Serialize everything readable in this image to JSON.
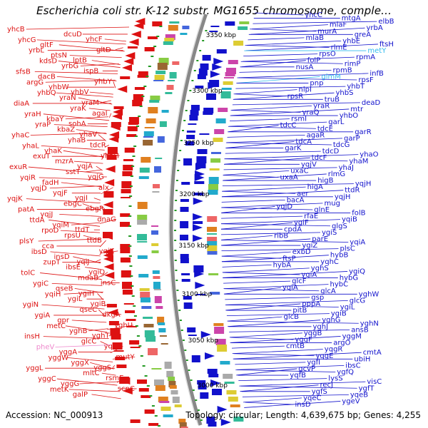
{
  "title": "Escherichia coli str. K-12 substr. MG1655 chromosome, comple...",
  "footer": {
    "accession": "Accession: NC_000913",
    "summary": "Topology: circular; Length: 4,639,675 bp; Genes: 4,255"
  },
  "colors": {
    "forward": "#dd1111",
    "reverse": "#1111cc",
    "pseudo": "#ee88cc",
    "rna": "#33bbee",
    "backbone": "#888888",
    "tick": "#229922"
  },
  "ruler_labels": [
    "3350 kbp",
    "3300 kbp",
    "3250 kbp",
    "3200 kbp",
    "3150 kbp",
    "3100 kbp",
    "3050 kbp",
    "3000 kbp"
  ],
  "left_genes": [
    "yhcB",
    "dcuD",
    "yhcF",
    "yhcG",
    "gltF",
    "gltD",
    "yrbL",
    "ptsN",
    "lptB",
    "kdsD",
    "yrbG",
    "ispB",
    "sfsB",
    "dacB",
    "yhbY",
    "argG",
    "yhbW",
    "yhbV",
    "yhbQ",
    "yraN",
    "yraM",
    "diaA",
    "yraK",
    "agaI",
    "yraH",
    "kbaY",
    "sohA",
    "yraP",
    "kbaZ",
    "yhaV",
    "yhaC",
    "yhaB",
    "tdcR",
    "yhaL",
    "yhaK",
    "yhaH",
    "exuT",
    "mzrA",
    "yqjA",
    "exuR",
    "sstT",
    "yqjG",
    "yqiR",
    "fadH",
    "alx",
    "yqjD",
    "yqjF",
    "yqjI",
    "yqjK",
    "ebgC",
    "ebgR",
    "patA",
    "yqjJ",
    "dnaG",
    "ttdA",
    "yqiM",
    "ttdT",
    "rpoD",
    "rpsU",
    "ttdB",
    "plsY",
    "cca",
    "yqiK",
    "ibsD",
    "insD",
    "yqiJ",
    "zupT",
    "ibsE",
    "ygiQ",
    "tolC",
    "mdaB",
    "insC",
    "ygiC",
    "qseB",
    "ygiH",
    "yqiH",
    "ygiL",
    "ygiB",
    "ygiN",
    "qseC",
    "dkgA",
    "ygiA",
    "gpr",
    "yghU",
    "metC",
    "yghB",
    "yghT",
    "insH",
    "glcC",
    "yqhG",
    "pheV",
    "yggA",
    "mutY",
    "yggW",
    "yggX",
    "yggS",
    "yggL",
    "mltC",
    "rsmE",
    "yggC",
    "yggG",
    "scpC",
    "metK",
    "galP"
  ],
  "right_genes": [
    "yhcC",
    "mtgA",
    "elbB",
    "mlaF",
    "yrbA",
    "murA",
    "greA",
    "mlaB",
    "yhbE",
    "ftsH",
    "rlmE",
    "metY",
    "rpsO",
    "rpmA",
    "folP",
    "rimP",
    "nusA",
    "rpmB",
    "infB",
    "glmM",
    "rpsF",
    "pnp",
    "yhbT",
    "nlpI",
    "yhbS",
    "rpsR",
    "truB",
    "deaD",
    "yraR",
    "mtr",
    "yraQ",
    "yhbO",
    "rsmI",
    "garL",
    "tdcC",
    "tdcE",
    "garR",
    "agaR",
    "garP",
    "tdcA",
    "tdcG",
    "garK",
    "tdcD",
    "yhaO",
    "tdcF",
    "yhaM",
    "yqjV",
    "yhaJ",
    "uxaC",
    "rlmG",
    "uxaA",
    "higB",
    "yqjH",
    "higA",
    "ttdR",
    "aer",
    "yqjH",
    "bacA",
    "mug",
    "yqjD",
    "glnE",
    "folB",
    "rfaE",
    "yqiB",
    "ygiF",
    "glgS",
    "cpdA",
    "ygiS",
    "ribB",
    "parE",
    "yqiA",
    "ygiZ",
    "plsC",
    "exbD",
    "hybB",
    "ftsP",
    "yqhC",
    "hybA",
    "yghS",
    "ygiQ",
    "ygiA",
    "hybG",
    "glcF",
    "hybC",
    "yqiA",
    "glcA",
    "yghW",
    "gsp",
    "glcG",
    "pppA",
    "ygiL",
    "pitB",
    "ygiB",
    "glcB",
    "yghG",
    "yghN",
    "yghJ",
    "ansB",
    "yqgB",
    "yggM",
    "yggF",
    "argO",
    "cmtB",
    "yqgR",
    "cmtA",
    "yqgE",
    "ubiH",
    "ygfI",
    "ibsC",
    "gcvP",
    "ygfQ",
    "yqfB",
    "lysS",
    "visC",
    "recJ",
    "ygfT",
    "ygfS",
    "yqeB",
    "yqeC",
    "ygeV",
    "insD"
  ]
}
